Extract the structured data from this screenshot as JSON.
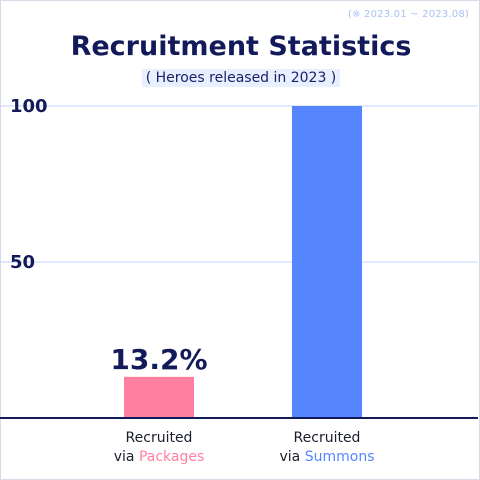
{
  "note": "(※ 2023.01 ~ 2023.08)",
  "title": "Recruitment Statistics",
  "subtitle": "( Heroes released in 2023 )",
  "colors": {
    "packages": "#ff7fa1",
    "summons": "#5585ff",
    "axis": "#131a5a",
    "grid": "#cfdcff"
  },
  "chart_data": {
    "type": "bar",
    "title": "Recruitment Statistics",
    "subtitle": "( Heroes released in 2023 )",
    "categories": [
      {
        "line1": "Recruited",
        "prefix": "via ",
        "highlight": "Packages"
      },
      {
        "line1": "Recruited",
        "prefix": "via ",
        "highlight": "Summons"
      }
    ],
    "values": [
      13.2,
      100
    ],
    "data_labels": [
      "13.2%",
      ""
    ],
    "ylim": [
      0,
      100
    ],
    "yticks": [
      50,
      100
    ],
    "ytick_labels": [
      "50",
      "100"
    ],
    "grid": true
  }
}
